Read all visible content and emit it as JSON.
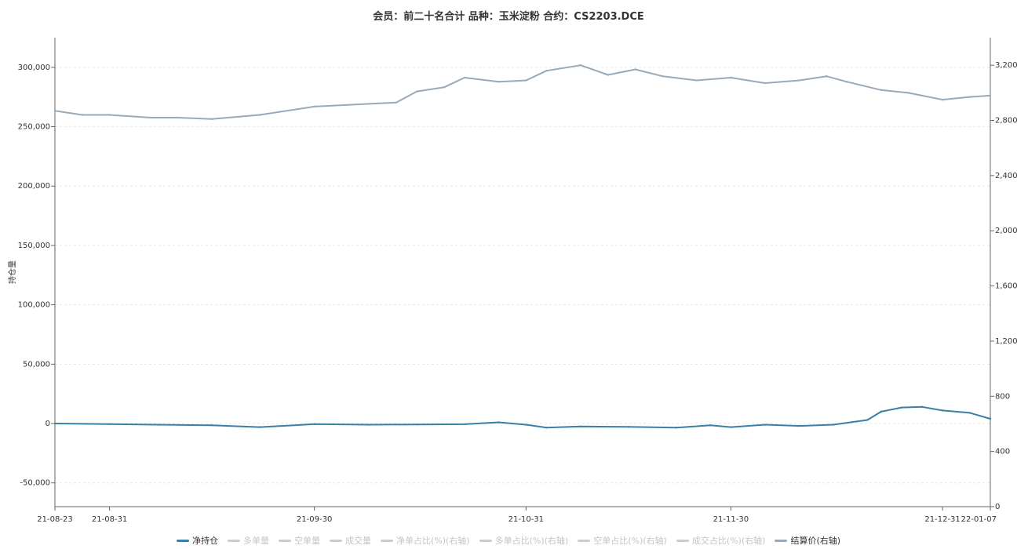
{
  "chart_data": {
    "type": "line",
    "title": "会员：前二十名合计 品种：玉米淀粉 合约：CS2203.DCE",
    "ylabel": "持仓量",
    "ylim_left": [
      -70000,
      325000
    ],
    "ylim_right": [
      0,
      3400
    ],
    "y_ticks_left": [
      -50000,
      0,
      50000,
      100000,
      150000,
      200000,
      250000,
      300000
    ],
    "y_tick_labels_left": [
      "-50,000",
      "0",
      "50,000",
      "100,000",
      "150,000",
      "200,000",
      "250,000",
      "300,000"
    ],
    "y_ticks_right": [
      0,
      400,
      800,
      1200,
      1600,
      2000,
      2400,
      2800,
      3200
    ],
    "y_tick_labels_right": [
      "0",
      "400",
      "800",
      "1,200",
      "1,600",
      "2,000",
      "2,400",
      "2,800",
      "3,200"
    ],
    "x_ticks": [
      "21-08-23",
      "21-08-31",
      "21-09-30",
      "21-10-31",
      "21-11-30",
      "21-12-31",
      "22-01-07"
    ],
    "grid": true,
    "legend_position": "bottom",
    "series": [
      {
        "name": "净持仓",
        "axis": "left",
        "color": "#3a7fa8",
        "x": [
          "2021-08-23",
          "2021-08-31",
          "2021-09-07",
          "2021-09-15",
          "2021-09-22",
          "2021-09-30",
          "2021-10-08",
          "2021-10-15",
          "2021-10-22",
          "2021-10-27",
          "2021-10-31",
          "2021-11-03",
          "2021-11-08",
          "2021-11-15",
          "2021-11-22",
          "2021-11-27",
          "2021-11-30",
          "2021-12-05",
          "2021-12-10",
          "2021-12-15",
          "2021-12-20",
          "2021-12-22",
          "2021-12-25",
          "2021-12-28",
          "2021-12-31",
          "2022-01-04",
          "2022-01-07"
        ],
        "values": [
          0,
          -500,
          -1000,
          -1500,
          -3000,
          -500,
          -1000,
          -800,
          -600,
          1000,
          -1000,
          -3500,
          -2500,
          -2800,
          -3500,
          -1500,
          -3000,
          -1000,
          -2000,
          -1000,
          3000,
          10000,
          13500,
          14000,
          11000,
          9000,
          4000
        ]
      },
      {
        "name": "多单量",
        "axis": "left",
        "color": "#cccccc",
        "x": [],
        "values": []
      },
      {
        "name": "空单量",
        "axis": "left",
        "color": "#cccccc",
        "x": [],
        "values": []
      },
      {
        "name": "成交量",
        "axis": "left",
        "color": "#cccccc",
        "x": [],
        "values": []
      },
      {
        "name": "净单占比(%)(右轴)",
        "axis": "right",
        "color": "#cccccc",
        "x": [],
        "values": []
      },
      {
        "name": "多单占比(%)(右轴)",
        "axis": "right",
        "color": "#cccccc",
        "x": [],
        "values": []
      },
      {
        "name": "空单占比(%)(右轴)",
        "axis": "right",
        "color": "#cccccc",
        "x": [],
        "values": []
      },
      {
        "name": "成交占比(%)(右轴)",
        "axis": "right",
        "color": "#cccccc",
        "x": [],
        "values": []
      },
      {
        "name": "结算价(右轴)",
        "axis": "right",
        "color": "#9aa9b8",
        "x": [
          "2021-08-23",
          "2021-08-27",
          "2021-08-31",
          "2021-09-06",
          "2021-09-10",
          "2021-09-15",
          "2021-09-22",
          "2021-09-30",
          "2021-10-08",
          "2021-10-12",
          "2021-10-15",
          "2021-10-19",
          "2021-10-22",
          "2021-10-27",
          "2021-10-31",
          "2021-11-03",
          "2021-11-08",
          "2021-11-12",
          "2021-11-16",
          "2021-11-20",
          "2021-11-25",
          "2021-11-30",
          "2021-12-05",
          "2021-12-10",
          "2021-12-14",
          "2021-12-17",
          "2021-12-22",
          "2021-12-26",
          "2021-12-31",
          "2022-01-04",
          "2022-01-07"
        ],
        "values": [
          2870,
          2840,
          2840,
          2820,
          2820,
          2810,
          2840,
          2900,
          2920,
          2930,
          3010,
          3040,
          3110,
          3080,
          3090,
          3160,
          3200,
          3130,
          3170,
          3120,
          3090,
          3110,
          3070,
          3090,
          3120,
          3080,
          3020,
          3000,
          2950,
          2970,
          2980
        ]
      }
    ],
    "legend_active": {
      "净持仓": true,
      "多单量": false,
      "空单量": false,
      "成交量": false,
      "净单占比(%)(右轴)": false,
      "多单占比(%)(右轴)": false,
      "空单占比(%)(右轴)": false,
      "成交占比(%)(右轴)": false,
      "结算价(右轴)": true
    }
  }
}
